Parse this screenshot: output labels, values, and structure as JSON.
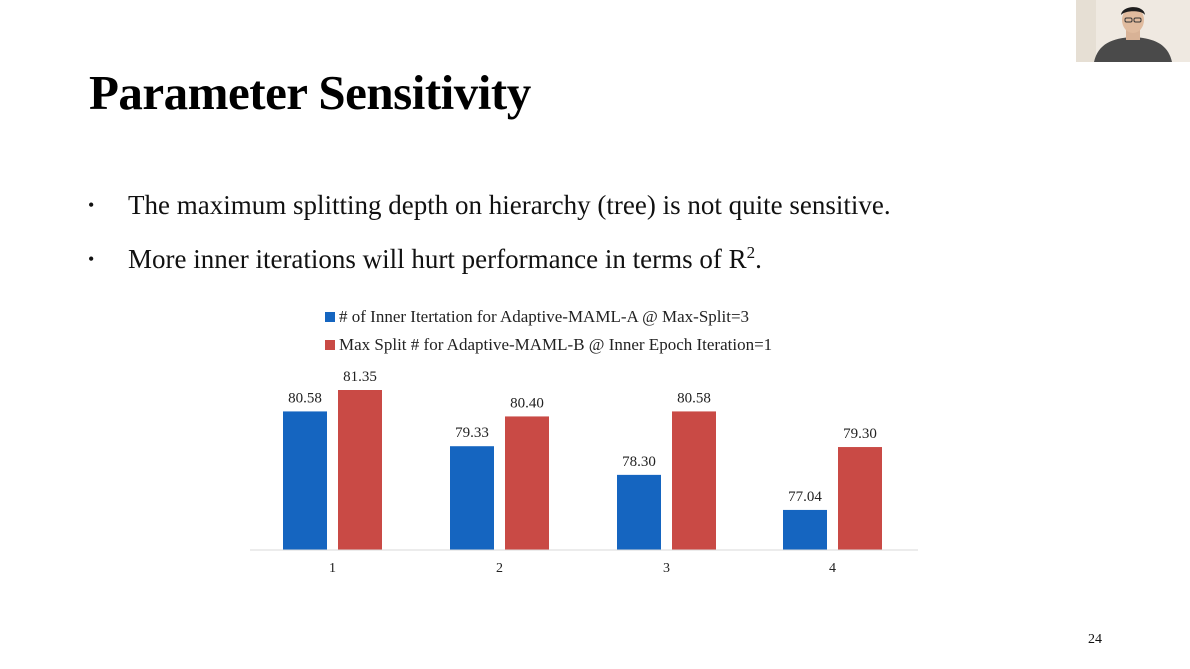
{
  "slide": {
    "title": "Parameter Sensitivity",
    "bullet_1": "The maximum splitting depth on hierarchy (tree) is not quite sensitive.",
    "bullet_2_pre": "More inner iterations will hurt performance in terms of R",
    "bullet_2_sup": "2",
    "bullet_2_post": ".",
    "bullet_marker": "•",
    "page_number": "24"
  },
  "chart_data": {
    "type": "bar",
    "categories": [
      "1",
      "2",
      "3",
      "4"
    ],
    "series": [
      {
        "name": "# of Inner Itertation for Adaptive-MAML-A @ Max-Split=3",
        "color": "#1565c0",
        "values": [
          80.58,
          79.33,
          78.3,
          77.04
        ],
        "labels": [
          "80.58",
          "79.33",
          "78.30",
          "77.04"
        ]
      },
      {
        "name": "Max Split # for Adaptive-MAML-B @ Inner Epoch Iteration=1",
        "color": "#c94a45",
        "values": [
          81.35,
          80.4,
          80.58,
          79.3
        ],
        "labels": [
          "81.35",
          "80.40",
          "80.58",
          "79.30"
        ]
      }
    ],
    "title": "",
    "xlabel": "",
    "ylabel": "",
    "ylim": [
      75.6,
      81.35
    ],
    "grid": false,
    "legend_position": "top"
  }
}
